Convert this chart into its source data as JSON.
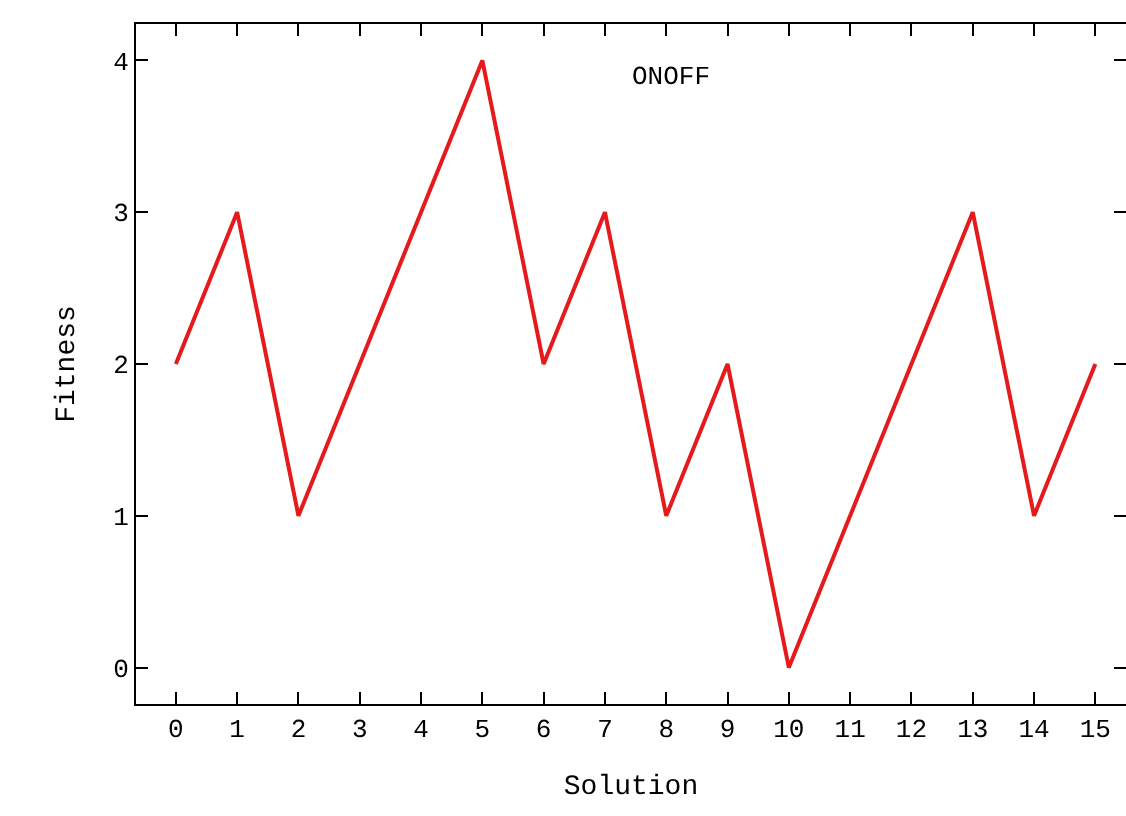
{
  "chart_data": {
    "type": "line",
    "xlabel": "Solution",
    "ylabel": "Fitness",
    "annotations": [
      "ONOFF"
    ],
    "x": [
      0,
      1,
      2,
      3,
      4,
      5,
      6,
      7,
      8,
      9,
      10,
      11,
      12,
      13,
      14,
      15
    ],
    "series": [
      {
        "color": "#e41a1c",
        "values": [
          2,
          3,
          1,
          2,
          3,
          4,
          2,
          3,
          1,
          2,
          0,
          1,
          2,
          3,
          1,
          2
        ]
      }
    ],
    "xlim": [
      -0.65,
      15.5
    ],
    "xticks": [
      0,
      1,
      2,
      3,
      4,
      5,
      6,
      7,
      8,
      9,
      10,
      11,
      12,
      13,
      14,
      15
    ],
    "ylim": [
      -0.24,
      4.24
    ],
    "yticks": [
      0,
      1,
      2,
      3,
      4
    ],
    "marker": "none",
    "line_style": "solid"
  }
}
